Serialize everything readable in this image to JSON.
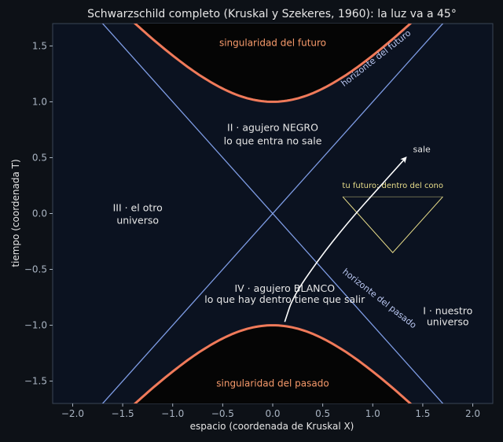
{
  "chart_data": {
    "type": "line",
    "title": "Schwarzschild completo (Kruskal y Szekeres, 1960): la luz va a 45°",
    "xlabel": "espacio (coordenada de Kruskal X)",
    "ylabel": "tiempo (coordenada T)",
    "xlim": [
      -2.2,
      2.2
    ],
    "ylim": [
      -1.7,
      1.7
    ],
    "xticks": [
      -2.0,
      -1.5,
      -1.0,
      -0.5,
      0.0,
      0.5,
      1.0,
      1.5,
      2.0
    ],
    "yticks": [
      -1.5,
      -1.0,
      -0.5,
      0.0,
      0.5,
      1.0,
      1.5
    ],
    "grid": false,
    "colors": {
      "background": "#0d1117",
      "plot_background": "#0b1220",
      "horizon": "#7f9de6",
      "singularity": "#f07a5a",
      "singularity_label": "#f79a6b",
      "cone": "#e8dd8a",
      "text": "#e6e6e6",
      "horizon_label": "#b9c6f0",
      "tick": "#a9b4c2",
      "interior": "#050505"
    },
    "series": [
      {
        "kind": "horizon",
        "x": [
          -2.2,
          2.2
        ],
        "y": [
          -2.2,
          2.2
        ]
      },
      {
        "kind": "horizon",
        "x": [
          -2.2,
          2.2
        ],
        "y": [
          2.2,
          -2.2
        ]
      },
      {
        "kind": "singularity",
        "branch": "future",
        "equation": "T^2 - X^2 = 1",
        "x_range": [
          -1.7,
          1.7
        ]
      },
      {
        "kind": "singularity",
        "branch": "past",
        "equation": "T^2 - X^2 = 1",
        "x_range": [
          -1.7,
          1.7
        ]
      },
      {
        "kind": "cone",
        "x": [
          0.7,
          1.2,
          1.7
        ],
        "y": [
          0.15,
          -0.35,
          0.15
        ]
      },
      {
        "kind": "cone-top",
        "x": [
          0.7,
          1.7
        ],
        "y": [
          0.15,
          0.15
        ]
      }
    ],
    "arrow": {
      "x": [
        0.12,
        0.2,
        0.45,
        0.75,
        1.05,
        1.33
      ],
      "y": [
        -0.97,
        -0.75,
        -0.42,
        -0.08,
        0.22,
        0.5
      ],
      "label": "sale"
    },
    "annotations": {
      "future_singularity": "singularidad del futuro",
      "past_singularity": "singularidad del pasado",
      "future_horizon": "horizonte del futuro",
      "past_horizon": "horizonte del pasado",
      "region_II_line1": "II · agujero NEGRO",
      "region_II_line2": "lo que entra no sale",
      "region_III_line1": "III · el otro",
      "region_III_line2": "universo",
      "region_IV_line1": "IV · agujero BLANCO",
      "region_IV_line2": "lo que hay dentro tiene que salir",
      "region_I_line1": "I · nuestro",
      "region_I_line2": "universo",
      "cone_label": "tu futuro: dentro del cono"
    }
  }
}
